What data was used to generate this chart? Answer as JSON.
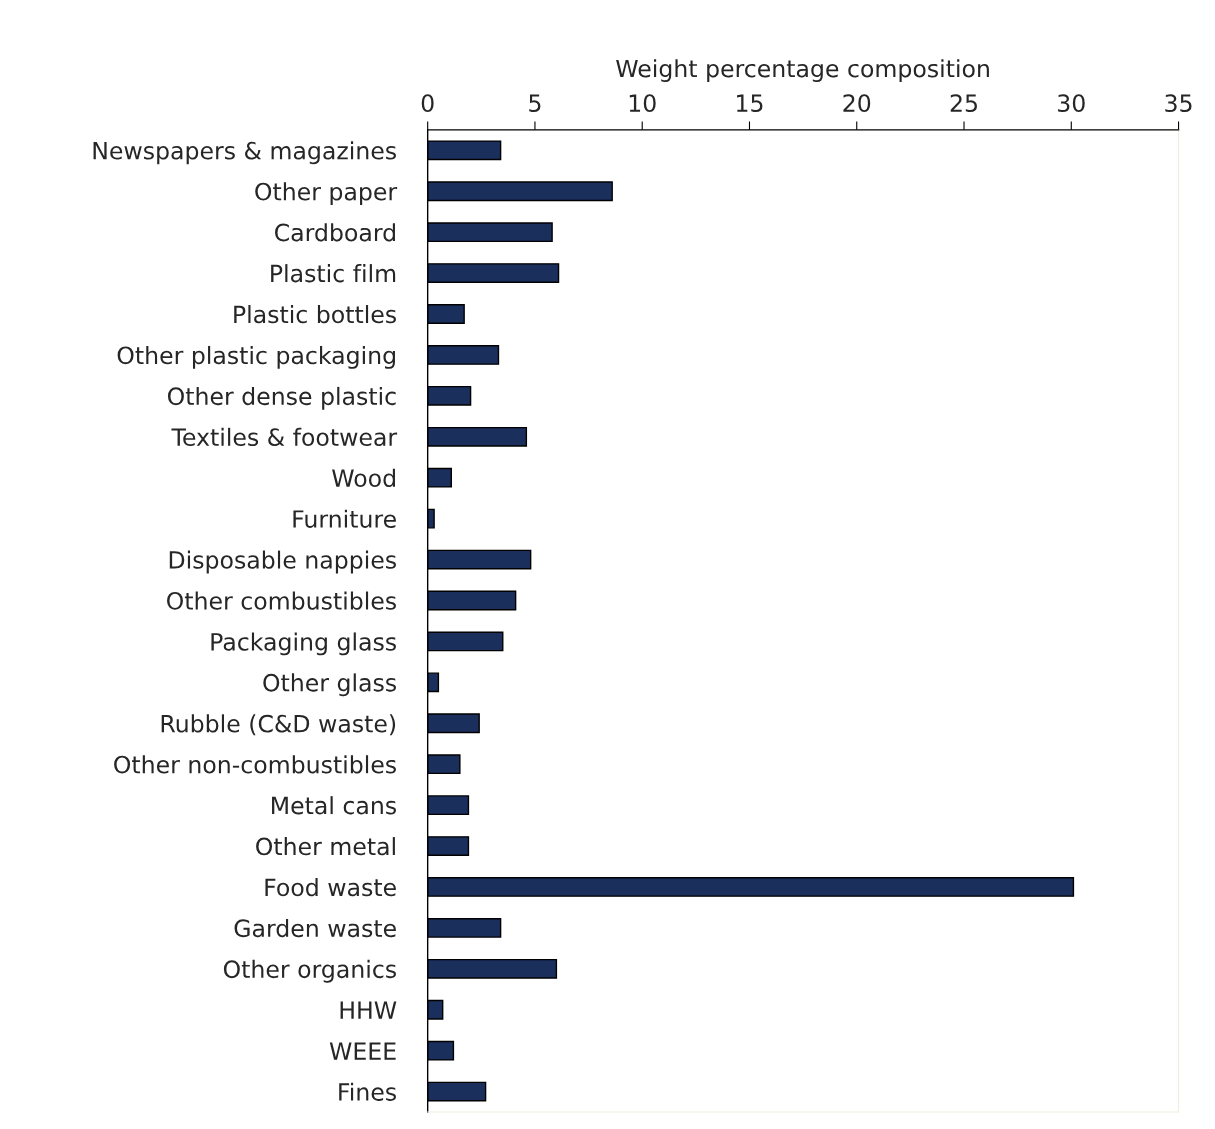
{
  "chart_data": {
    "type": "bar",
    "orientation": "horizontal",
    "xlabel": "Weight percentage composition",
    "categories": [
      "Newspapers & magazines",
      "Other paper",
      "Cardboard",
      "Plastic film",
      "Plastic bottles",
      "Other plastic packaging",
      "Other dense plastic",
      "Textiles & footwear",
      "Wood",
      "Furniture",
      "Disposable nappies",
      "Other combustibles",
      "Packaging glass",
      "Other glass",
      "Rubble (C&D waste)",
      "Other non-combustibles",
      "Metal cans",
      "Other metal",
      "Food waste",
      "Garden waste",
      "Other organics",
      "HHW",
      "WEEE",
      "Fines"
    ],
    "values": [
      3.4,
      8.6,
      5.8,
      6.1,
      1.7,
      3.3,
      2.0,
      4.6,
      1.1,
      0.3,
      4.8,
      4.1,
      3.5,
      0.5,
      2.4,
      1.5,
      1.9,
      1.9,
      30.1,
      3.4,
      6.0,
      0.7,
      1.2,
      2.7
    ],
    "color": "#1b2f5c",
    "xlim": [
      0,
      35
    ],
    "xticks": [
      0,
      5,
      10,
      15,
      20,
      25,
      30,
      35
    ],
    "grid": false,
    "legend": false
  }
}
